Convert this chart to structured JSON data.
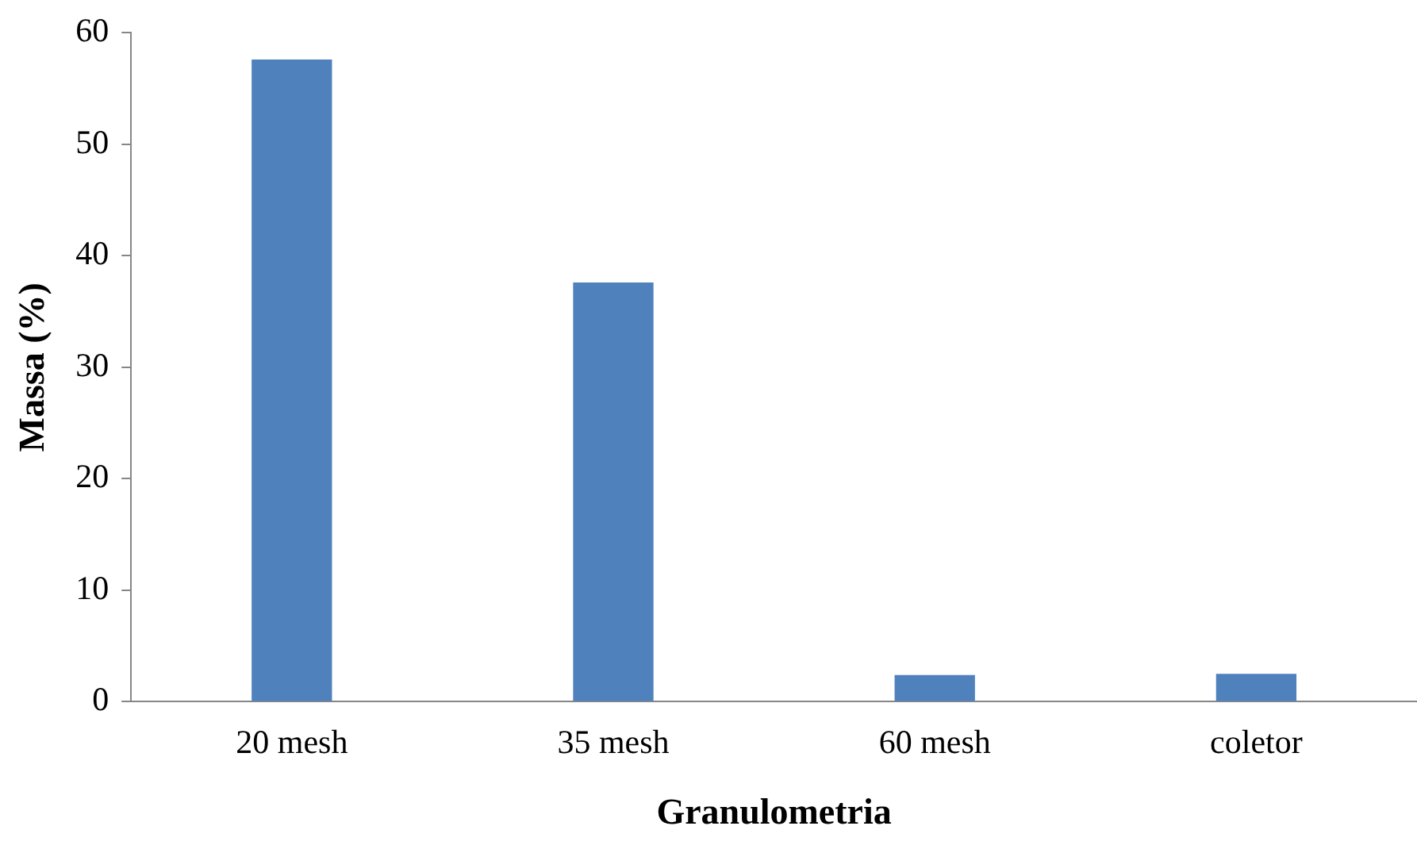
{
  "chart_data": {
    "type": "bar",
    "xlabel": "Granulometria",
    "ylabel": "Massa (%)",
    "categories": [
      "20 mesh",
      "35 mesh",
      "60 mesh",
      "coletor"
    ],
    "values": [
      57.6,
      37.6,
      2.4,
      2.5
    ],
    "color": "#4f81bd",
    "ylim": [
      0,
      60
    ],
    "yticks": [
      0,
      10,
      20,
      30,
      40,
      50,
      60
    ],
    "grid": false,
    "legend": false
  }
}
